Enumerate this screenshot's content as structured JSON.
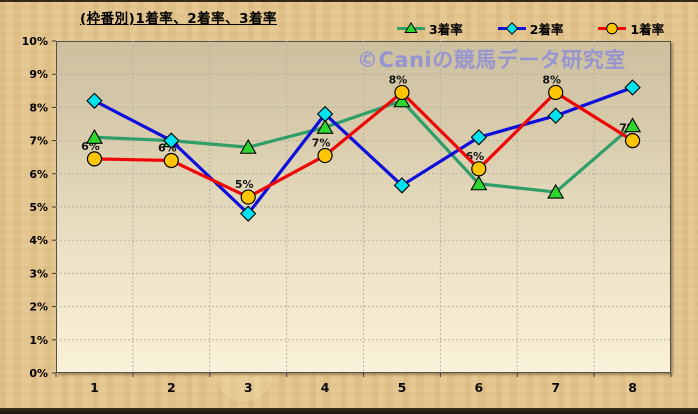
{
  "page": {
    "title": "(枠番別)1着率、2着率、3着率",
    "watermark": "©Caniの競馬データ研究室"
  },
  "colors": {
    "rank3_line": "#2f9e68",
    "rank3_marker": "#2ed52e",
    "rank2_line": "#0d0ddd",
    "rank2_marker": "#00e2ef",
    "rank1_line": "#ee0505",
    "rank1_marker": "#ffc402",
    "watermark": "#8f8fd8",
    "plot_bg_top": "#ccc09f",
    "plot_bg_bottom": "#faf1da",
    "page_bg": "#e3c58f"
  },
  "chart_data": {
    "type": "line",
    "title": "(枠番別)1着率、2着率、3着率",
    "categories": [
      "1",
      "2",
      "3",
      "4",
      "5",
      "6",
      "7",
      "8"
    ],
    "series": [
      {
        "name": "3着率",
        "key": "rank3",
        "marker": "triangle",
        "line_color": "#2f9e68",
        "marker_color": "#2ed52e",
        "values": [
          7.1,
          7.0,
          6.8,
          7.4,
          8.2,
          5.7,
          5.45,
          7.45
        ]
      },
      {
        "name": "2着率",
        "key": "rank2",
        "marker": "diamond",
        "line_color": "#0d0ddd",
        "marker_color": "#00e2ef",
        "values": [
          8.2,
          7.0,
          4.8,
          7.8,
          5.65,
          7.1,
          7.75,
          8.6
        ]
      },
      {
        "name": "1着率",
        "key": "rank1",
        "marker": "circle",
        "line_color": "#ee0505",
        "marker_color": "#ffc402",
        "values": [
          6.45,
          6.4,
          5.3,
          6.55,
          8.45,
          6.15,
          8.45,
          7.0
        ],
        "data_labels": [
          "6%",
          "6%",
          "5%",
          "7%",
          "8%",
          "6%",
          "8%",
          "7%"
        ]
      }
    ],
    "yticks": [
      "0%",
      "1%",
      "2%",
      "3%",
      "4%",
      "5%",
      "6%",
      "7%",
      "8%",
      "9%",
      "10%"
    ],
    "ylim": [
      0,
      10
    ],
    "xlabel": "",
    "ylabel": "",
    "grid": true,
    "legend_position": "top-right"
  }
}
